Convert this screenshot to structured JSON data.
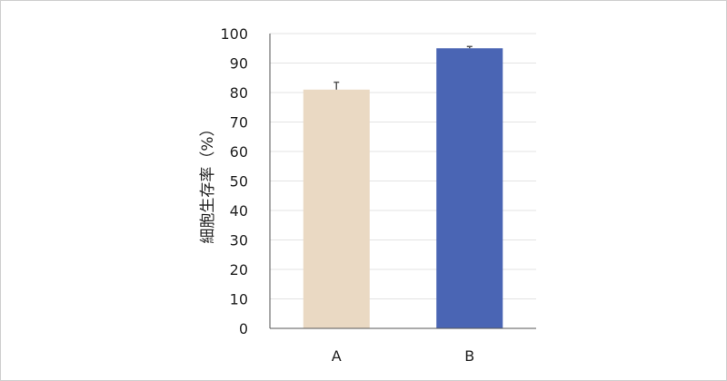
{
  "chart_data": {
    "type": "bar",
    "title": "",
    "xlabel": "",
    "ylabel": "細胞生存率（%）",
    "categories": [
      "A",
      "B"
    ],
    "values": [
      81,
      95
    ],
    "error": [
      2.5,
      0.6
    ],
    "ylim": [
      0,
      100
    ],
    "yticks": [
      0,
      10,
      20,
      30,
      40,
      50,
      60,
      70,
      80,
      90,
      100
    ],
    "grid": true,
    "colors": [
      "#EAD9C3",
      "#4A65B4"
    ]
  }
}
